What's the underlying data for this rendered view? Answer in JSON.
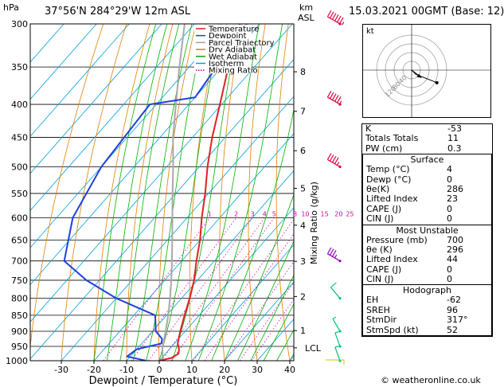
{
  "header": {
    "hpa_label": "hPa",
    "location": "37°56'N  284°29'W  12m  ASL",
    "km_label": "km",
    "asl_label": "ASL",
    "datetime": "15.03.2021  00GMT  (Base: 12)"
  },
  "footer": {
    "credit": "© weatheronline.co.uk"
  },
  "chart_data": {
    "type": "skewt",
    "xlabel": "Dewpoint / Temperature (°C)",
    "ylabel_right": "Mixing Ratio (g/kg)",
    "pressure_levels": [
      300,
      350,
      400,
      450,
      500,
      550,
      600,
      650,
      700,
      750,
      800,
      850,
      900,
      950,
      1000
    ],
    "pressure_labels": [
      "300",
      "350",
      "400",
      "450",
      "500",
      "550",
      "600",
      "650",
      "700",
      "750",
      "800",
      "850",
      "900",
      "950",
      "1000"
    ],
    "x_ticks": [
      -30,
      -20,
      -10,
      0,
      10,
      20,
      30,
      40
    ],
    "x_tick_labels": [
      "-30",
      "-20",
      "-10",
      "0",
      "10",
      "20",
      "30",
      "40"
    ],
    "km_ticks": [
      {
        "km": "8",
        "p": 356
      },
      {
        "km": "7",
        "p": 410
      },
      {
        "km": "6",
        "p": 472
      },
      {
        "km": "5",
        "p": 540
      },
      {
        "km": "4",
        "p": 616
      },
      {
        "km": "3",
        "p": 701
      },
      {
        "km": "2",
        "p": 795
      },
      {
        "km": "1",
        "p": 898
      }
    ],
    "lcl": {
      "label": "LCL",
      "p": 955
    },
    "mixing_ratio_labels": [
      "1",
      "2",
      "3",
      "4",
      "5",
      "8",
      "10",
      "15",
      "20",
      "25"
    ],
    "mixing_ratio_values": [
      1,
      2,
      3,
      4,
      5,
      8,
      10,
      15,
      20,
      25
    ],
    "legend": [
      {
        "name": "Temperature",
        "color": "#e02020",
        "style": "solid"
      },
      {
        "name": "Dewpoint",
        "color": "#2040e0",
        "style": "solid"
      },
      {
        "name": "Parcel Trajectory",
        "color": "#a0a0a0",
        "style": "solid"
      },
      {
        "name": "Dry Adiabat",
        "color": "#e08000",
        "style": "solid"
      },
      {
        "name": "Wet Adiabat",
        "color": "#00b000",
        "style": "solid"
      },
      {
        "name": "Isotherm",
        "color": "#00a0e0",
        "style": "solid"
      },
      {
        "name": "Mixing Ratio",
        "color": "#d000a0",
        "style": "dotted"
      }
    ],
    "temperature": [
      {
        "p": 1000,
        "t": 0
      },
      {
        "p": 990,
        "t": 3
      },
      {
        "p": 975,
        "t": 4
      },
      {
        "p": 960,
        "t": 3
      },
      {
        "p": 940,
        "t": 1
      },
      {
        "p": 900,
        "t": -1.5
      },
      {
        "p": 850,
        "t": -4.5
      },
      {
        "p": 800,
        "t": -7.5
      },
      {
        "p": 750,
        "t": -11
      },
      {
        "p": 700,
        "t": -15.5
      },
      {
        "p": 650,
        "t": -20
      },
      {
        "p": 600,
        "t": -25.5
      },
      {
        "p": 550,
        "t": -31
      },
      {
        "p": 500,
        "t": -37.5
      },
      {
        "p": 450,
        "t": -44
      },
      {
        "p": 400,
        "t": -50.5
      },
      {
        "p": 350,
        "t": -58
      },
      {
        "p": 300,
        "t": -66
      }
    ],
    "dewpoint": [
      {
        "p": 1000,
        "t": -4
      },
      {
        "p": 985,
        "t": -11
      },
      {
        "p": 960,
        "t": -10
      },
      {
        "p": 940,
        "t": -4
      },
      {
        "p": 925,
        "t": -5
      },
      {
        "p": 900,
        "t": -9
      },
      {
        "p": 850,
        "t": -13.5
      },
      {
        "p": 800,
        "t": -30
      },
      {
        "p": 750,
        "t": -44
      },
      {
        "p": 700,
        "t": -56
      },
      {
        "p": 600,
        "t": -65
      },
      {
        "p": 500,
        "t": -70
      },
      {
        "p": 400,
        "t": -72
      },
      {
        "p": 390,
        "t": -60
      },
      {
        "p": 300,
        "t": -64
      }
    ],
    "parcel": [
      {
        "p": 1000,
        "t": 1
      },
      {
        "p": 955,
        "t": -2.5
      },
      {
        "p": 900,
        "t": -6
      },
      {
        "p": 850,
        "t": -9.5
      },
      {
        "p": 800,
        "t": -13.5
      },
      {
        "p": 750,
        "t": -18
      },
      {
        "p": 700,
        "t": -23
      },
      {
        "p": 650,
        "t": -28.5
      },
      {
        "p": 600,
        "t": -34.5
      },
      {
        "p": 550,
        "t": -41
      },
      {
        "p": 500,
        "t": -48
      },
      {
        "p": 450,
        "t": -56
      },
      {
        "p": 400,
        "t": -64
      },
      {
        "p": 350,
        "t": -73
      },
      {
        "p": 300,
        "t": -83
      }
    ],
    "wind_barbs": [
      {
        "p": 300,
        "color": "#e00040",
        "dir": 300,
        "kt": 65
      },
      {
        "p": 400,
        "color": "#e00040",
        "dir": 300,
        "kt": 55
      },
      {
        "p": 500,
        "color": "#e00040",
        "dir": 300,
        "kt": 45
      },
      {
        "p": 700,
        "color": "#9000c0",
        "dir": 300,
        "kt": 35
      },
      {
        "p": 800,
        "color": "#00c080",
        "dir": 320,
        "kt": 10
      },
      {
        "p": 900,
        "color": "#00c080",
        "dir": 330,
        "kt": 5
      },
      {
        "p": 950,
        "color": "#00c080",
        "dir": 340,
        "kt": 5
      },
      {
        "p": 1000,
        "color": "#00c080",
        "dir": 340,
        "kt": 5
      }
    ],
    "hodograph": {
      "label": "kt",
      "ring_labels": [
        "120",
        "80",
        "40"
      ],
      "points": [
        {
          "u": 0,
          "v": 0
        },
        {
          "u": 6,
          "v": -6
        },
        {
          "u": 36,
          "v": -18
        }
      ],
      "storm": {
        "u": 14,
        "v": -11
      }
    }
  },
  "indices": [
    {
      "label": "K",
      "value": "-53"
    },
    {
      "label": "Totals Totals",
      "value": "11"
    },
    {
      "label": "PW (cm)",
      "value": "0.3"
    }
  ],
  "surface": {
    "title": "Surface",
    "rows": [
      {
        "label": "Temp (°C)",
        "value": "4"
      },
      {
        "label": "Dewp (°C)",
        "value": "0"
      },
      {
        "label": "θe(K)",
        "value": "286"
      },
      {
        "label": "Lifted Index",
        "value": "23"
      },
      {
        "label": "CAPE (J)",
        "value": "0"
      },
      {
        "label": "CIN (J)",
        "value": "0"
      }
    ]
  },
  "most_unstable": {
    "title": "Most Unstable",
    "rows": [
      {
        "label": "Pressure (mb)",
        "value": "700"
      },
      {
        "label": "θe (K)",
        "value": "296"
      },
      {
        "label": "Lifted Index",
        "value": "44"
      },
      {
        "label": "CAPE (J)",
        "value": "0"
      },
      {
        "label": "CIN (J)",
        "value": "0"
      }
    ]
  },
  "hodograph_table": {
    "title": "Hodograph",
    "rows": [
      {
        "label": "EH",
        "value": "-62"
      },
      {
        "label": "SREH",
        "value": "96"
      },
      {
        "label": "StmDir",
        "value": "317°"
      },
      {
        "label": "StmSpd (kt)",
        "value": "52"
      }
    ]
  }
}
